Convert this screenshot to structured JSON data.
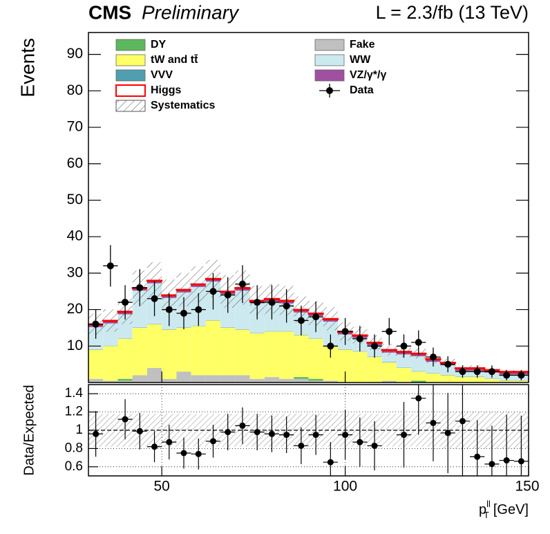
{
  "chart_data": [
    {
      "type": "stacked-histogram",
      "title": "CMS",
      "subtitle": "Preliminary",
      "annotation": "L = 2.3/fb (13 TeV)",
      "y_label": "Events",
      "bins": [
        30,
        34,
        38,
        42,
        46,
        50,
        54,
        58,
        62,
        66,
        70,
        74,
        78,
        82,
        86,
        90,
        94,
        98,
        102,
        106,
        110,
        114,
        118,
        122,
        126,
        130,
        134,
        138,
        142,
        146,
        150
      ],
      "xlim": [
        30,
        150
      ],
      "ylim": [
        0,
        96
      ],
      "yticks": [
        10,
        20,
        30,
        40,
        50,
        60,
        70,
        80,
        90
      ],
      "series": [
        {
          "name": "Fake",
          "color": "#c0c0c0",
          "values": [
            1,
            0.5,
            0.5,
            2,
            4,
            1,
            3,
            2,
            2,
            2,
            2,
            1,
            1.5,
            1,
            1,
            0.5,
            0.5,
            0,
            0,
            0,
            0.5,
            0,
            0,
            0,
            0,
            0,
            0,
            0,
            0,
            0
          ]
        },
        {
          "name": "DY",
          "color": "#5cb85c",
          "values": [
            0,
            0,
            0.5,
            0,
            0,
            0,
            0,
            0,
            0,
            0,
            0,
            0,
            0,
            0,
            0.5,
            0.5,
            0,
            0,
            0,
            0,
            0,
            0,
            0.5,
            0,
            0,
            0,
            0,
            0,
            0,
            0
          ]
        },
        {
          "name": "tW and tt̄",
          "color": "#ffff66",
          "values": [
            8,
            9.5,
            11,
            13,
            12,
            13.5,
            12,
            13.5,
            15,
            13,
            12.5,
            12.5,
            12.5,
            13,
            11.5,
            11,
            9.5,
            9,
            8.5,
            7,
            5,
            4,
            2.5,
            2.5,
            2,
            1.5,
            1.5,
            1,
            0.5,
            0.5
          ]
        },
        {
          "name": "VVV",
          "color": "#4f9fb0",
          "values": [
            0.1,
            0.1,
            0.1,
            0.1,
            0.1,
            0.1,
            0.1,
            0.1,
            0.1,
            0.1,
            0.1,
            0.1,
            0.1,
            0.1,
            0.1,
            0.1,
            0.1,
            0.1,
            0.1,
            0.1,
            0.1,
            0.1,
            0.1,
            0.1,
            0.1,
            0.1,
            0.1,
            0.1,
            0.1,
            0.1
          ]
        },
        {
          "name": "WW",
          "color": "#cde9f0",
          "values": [
            6.1,
            6.1,
            6.6,
            10.1,
            11.1,
            8.6,
            9.6,
            10.6,
            10.6,
            9.1,
            10.6,
            8.1,
            8.1,
            7.6,
            6.1,
            6.1,
            6.6,
            4.1,
            3.6,
            3.1,
            2.6,
            3.6,
            4.1,
            3.1,
            2.6,
            1.6,
            1.6,
            1.6,
            1.6,
            1.6
          ]
        },
        {
          "name": "VZ/γ*/γ",
          "color": "#a050a0",
          "values": [
            0.6,
            0.6,
            0.6,
            0.6,
            0.6,
            0.6,
            0.6,
            0.6,
            0.6,
            0.6,
            0.6,
            0.6,
            0.6,
            0.6,
            0.6,
            0.6,
            0.6,
            0.6,
            0.6,
            0.6,
            0.6,
            0.6,
            0.6,
            0.6,
            0.6,
            0.6,
            0.6,
            0.6,
            0.6,
            0.6
          ]
        },
        {
          "name": "Higgs",
          "color": "#ff0000",
          "outline": true,
          "values": [
            0.2,
            0.2,
            0.2,
            0.2,
            0.2,
            0.2,
            0.2,
            0.2,
            0.2,
            0.2,
            0.2,
            0.2,
            0.2,
            0.2,
            0.2,
            0.2,
            0.2,
            0.2,
            0.2,
            0.2,
            0.2,
            0.2,
            0.2,
            0.2,
            0.2,
            0.2,
            0.2,
            0.2,
            0.2,
            0.2
          ]
        }
      ],
      "systematics": {
        "name": "Systematics",
        "values": [
          2.9,
          3.1,
          3.5,
          4.7,
          5,
          4.3,
          4.6,
          4.9,
          5.1,
          4.5,
          4.7,
          4,
          4.1,
          4,
          3.6,
          3.4,
          3.2,
          2.5,
          2.3,
          2,
          1.6,
          1.5,
          1.4,
          1.2,
          1,
          0.7,
          0.7,
          0.6,
          0.5,
          0.5
        ]
      },
      "data": {
        "name": "Data",
        "color": "#000000",
        "values": [
          16,
          32,
          22,
          26,
          23,
          20,
          19,
          20,
          25,
          24,
          27,
          22,
          22,
          21,
          17,
          18,
          10,
          14,
          12,
          10,
          14,
          10,
          11,
          7,
          5,
          3,
          3,
          3,
          2,
          2
        ],
        "errors": [
          4,
          5.7,
          4.7,
          5.1,
          4.8,
          4.5,
          4.4,
          4.5,
          5,
          4.9,
          5.2,
          4.7,
          4.7,
          4.6,
          4.1,
          4.2,
          3.2,
          3.7,
          3.5,
          3.2,
          3.7,
          3.2,
          3.3,
          2.6,
          2.2,
          1.7,
          1.7,
          1.7,
          1.4,
          1.4
        ]
      }
    },
    {
      "type": "ratio",
      "y_label": "Data/Expected",
      "x_label": {
        "main": "p",
        "sub": "T",
        "sup": "ll",
        "unit": "[GeV]"
      },
      "xlim": [
        30,
        150
      ],
      "xticks": [
        50,
        100,
        150
      ],
      "ylim": [
        0.5,
        1.5
      ],
      "yticks": [
        0.6,
        0.8,
        1,
        1.2,
        1.4
      ],
      "values": [
        0.96,
        null,
        1.12,
        0.99,
        0.82,
        0.87,
        0.75,
        0.74,
        0.88,
        0.98,
        1.05,
        0.98,
        0.96,
        0.95,
        0.83,
        0.95,
        0.65,
        0.95,
        0.87,
        0.83,
        null,
        0.95,
        1.35,
        1.08,
        0.97,
        1.1,
        0.71,
        0.63,
        0.67,
        0.66
      ],
      "errors": [
        0.25,
        null,
        0.22,
        0.2,
        0.17,
        0.19,
        0.17,
        0.17,
        0.18,
        0.2,
        0.2,
        0.2,
        0.2,
        0.2,
        0.2,
        0.22,
        0.22,
        0.27,
        0.27,
        0.27,
        null,
        0.36,
        0.4,
        0.42,
        0.44,
        0.6,
        0.4,
        0.42,
        0.5,
        0.5
      ],
      "band": [
        0.18,
        0.18,
        0.18,
        0.18,
        0.18,
        0.18,
        0.18,
        0.18,
        0.18,
        0.18,
        0.18,
        0.18,
        0.18,
        0.18,
        0.18,
        0.18,
        0.18,
        0.18,
        0.18,
        0.18,
        0.18,
        0.18,
        0.18,
        0.18,
        0.2,
        0.2,
        0.2,
        0.2,
        0.2,
        0.2
      ]
    }
  ]
}
